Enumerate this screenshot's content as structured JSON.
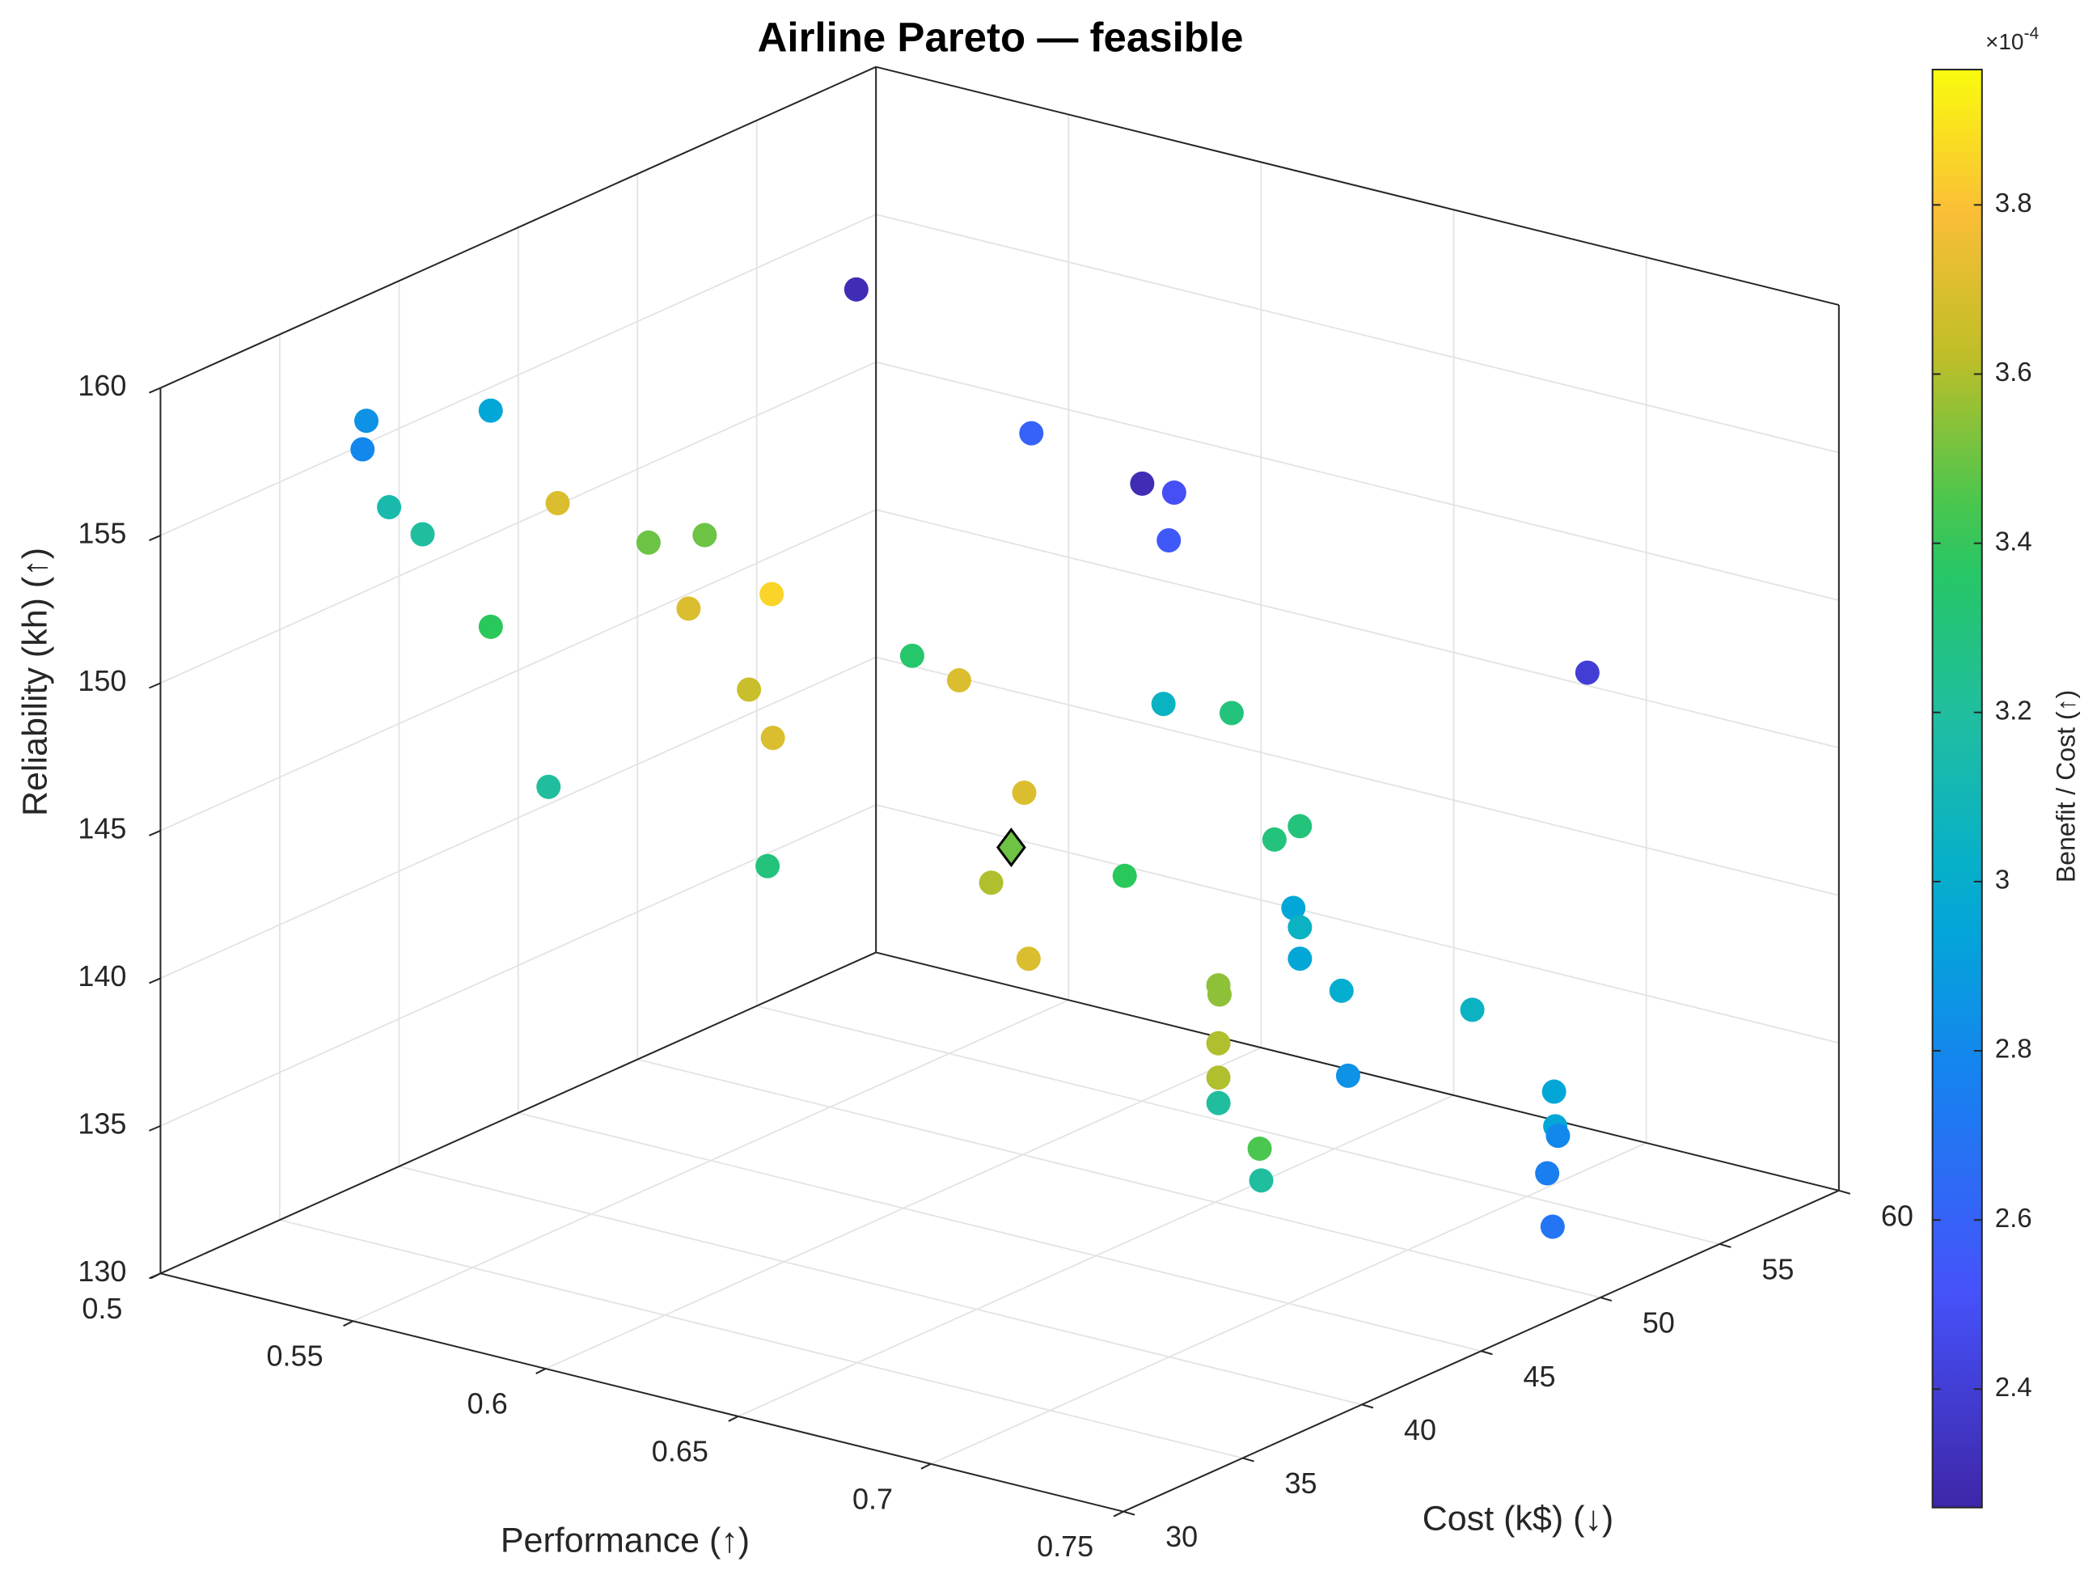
{
  "chart_data": {
    "type": "scatter3d",
    "title": "Airline Pareto — feasible",
    "xlabel": "Performance (↑)",
    "ylabel": "Cost (k$) (↓)",
    "zlabel": "Reliability (kh) (↑)",
    "xlim": [
      0.5,
      0.75
    ],
    "xticks": [
      0.5,
      0.55,
      0.6,
      0.65,
      0.7,
      0.75
    ],
    "ylim": [
      30,
      60
    ],
    "yticks": [
      30,
      35,
      40,
      45,
      50,
      55,
      60
    ],
    "zlim": [
      130,
      160
    ],
    "zticks": [
      130,
      135,
      140,
      145,
      150,
      155,
      160
    ],
    "grid": true,
    "colormap": "parula",
    "color_label": "Benefit / Cost (↑)",
    "clim": [
      2.26,
      3.96
    ],
    "cticks": [
      2.4,
      2.6,
      2.8,
      3,
      3.2,
      3.4,
      3.6,
      3.8
    ],
    "color_multiplier": {
      "base": "×10",
      "exponent": "-4"
    },
    "x": [
      0.55,
      0.5225,
      0.5215,
      0.5362,
      0.5222,
      0.5247,
      0.5412,
      0.5524,
      0.5546,
      0.5486,
      0.5658,
      0.5628,
      0.5723,
      0.5723,
      0.5574,
      0.5895,
      0.5713,
      0.5877,
      0.5898,
      0.5946,
      0.6909,
      0.5837,
      0.5897,
      0.6118,
      0.6233,
      0.6128,
      0.6166,
      0.6265,
      0.6468,
      0.6472,
      0.6579,
      0.6596,
      0.6658,
      0.6325,
      0.6632,
      0.6635,
      0.6704,
      0.6796,
      0.6694,
      0.6756,
      0.6845,
      0.6818,
      0.6925,
      0.6991,
      0.7194,
      0.7259,
      0.7266,
      0.73,
      0.7376
    ],
    "y": [
      51.1,
      35,
      35,
      38,
      36,
      37,
      40,
      42,
      44,
      36,
      45,
      42,
      43,
      44,
      37,
      41,
      55,
      57,
      58,
      57,
      59,
      48,
      49,
      54,
      55,
      48,
      46,
      50,
      53,
      54,
      52,
      52,
      51,
      45,
      48,
      48,
      52,
      56,
      47,
      46,
      50,
      45,
      45,
      44,
      53,
      52,
      52,
      51,
      50
    ],
    "z": [
      157.3,
      157.8,
      156.8,
      157.5,
      154.5,
      153.3,
      153.8,
      152.1,
      151.7,
      151.3,
      149.7,
      150.2,
      147.4,
      145.4,
      145.8,
      142.7,
      151.7,
      149.8,
      149.2,
      148.1,
      146.0,
      147.1,
      146.1,
      144.2,
      143.9,
      143.4,
      141.2,
      140.3,
      141.1,
      141.2,
      139.5,
      138.9,
      138.4,
      139.5,
      138.5,
      138.2,
      137.1,
      135.3,
      137.1,
      136.5,
      135.4,
      136.2,
      135.0,
      134.5,
      134.9,
      134.3,
      134.0,
      133.2,
      132.0
    ],
    "c": [
      2.3,
      2.85,
      2.8,
      2.95,
      3.15,
      3.2,
      3.7,
      3.5,
      3.5,
      3.4,
      3.85,
      3.7,
      3.65,
      3.7,
      3.2,
      3.3,
      2.6,
      2.3,
      2.5,
      2.55,
      2.4,
      3.35,
      3.7,
      3.05,
      3.3,
      3.7,
      3.6,
      3.4,
      3.3,
      3.3,
      2.95,
      3.05,
      2.95,
      3.7,
      3.55,
      3.55,
      3.0,
      3.05,
      3.6,
      3.6,
      2.85,
      3.2,
      3.45,
      3.2,
      2.95,
      2.95,
      2.8,
      2.75,
      2.7
    ],
    "highlight": {
      "x": 0.6156,
      "y": 47,
      "z": 142.0,
      "c": 3.5
    }
  }
}
